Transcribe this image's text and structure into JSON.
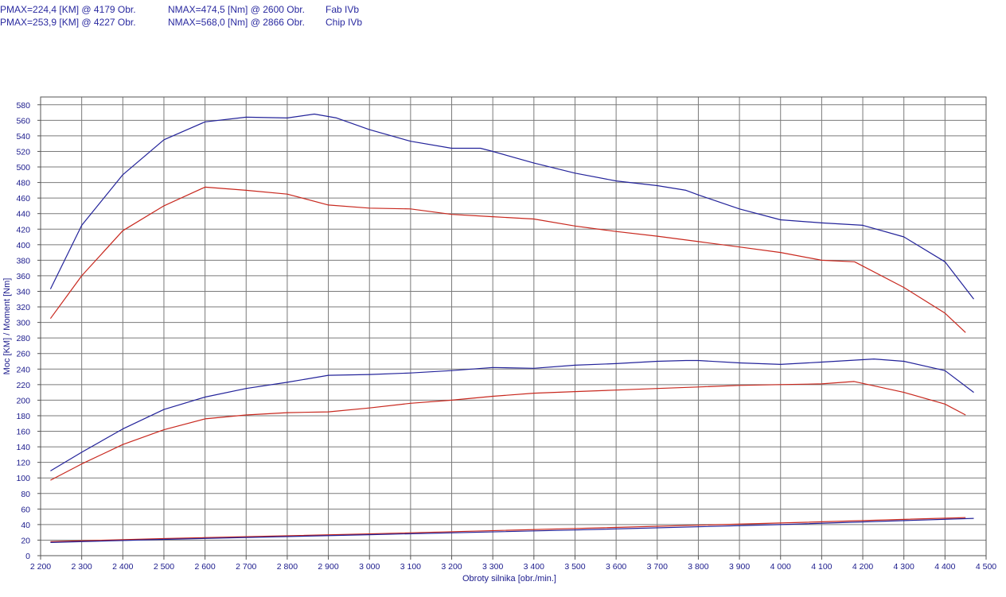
{
  "header": {
    "rows": [
      {
        "pmax": "PMAX=224,4 [KM] @ 4179 Obr.",
        "nmax": "NMAX=474,5 [Nm] @ 2600 Obr.",
        "label": "Fab IVb"
      },
      {
        "pmax": "PMAX=253,9 [KM] @ 4227 Obr.",
        "nmax": "NMAX=568,0 [Nm] @ 2866 Obr.",
        "label": "Chip IVb"
      }
    ]
  },
  "colors": {
    "fab": "#c8281e",
    "chip": "#23239a",
    "grid": "#7a7a7a",
    "text": "#1a1a8c"
  },
  "chart_data": {
    "type": "line",
    "xlabel": "Obroty silnika [obr./min.]",
    "ylabel": "Moc [KM] / Moment [Nm]",
    "xlim": [
      2200,
      4500
    ],
    "ylim": [
      0,
      590
    ],
    "xticks": [
      2200,
      2300,
      2400,
      2500,
      2600,
      2700,
      2800,
      2900,
      3000,
      3100,
      3200,
      3300,
      3400,
      3500,
      3600,
      3700,
      3800,
      3900,
      4000,
      4100,
      4200,
      4300,
      4400,
      4500
    ],
    "xtick_labels": [
      "2 200",
      "2 300",
      "2 400",
      "2 500",
      "2 600",
      "2 700",
      "2 800",
      "2 900",
      "3 000",
      "3 100",
      "3 200",
      "3 300",
      "3 400",
      "3 500",
      "3 600",
      "3 700",
      "3 800",
      "3 900",
      "4 000",
      "4 100",
      "4 200",
      "4 300",
      "4 400",
      "4 500"
    ],
    "yticks": [
      0,
      20,
      40,
      60,
      80,
      100,
      120,
      140,
      160,
      180,
      200,
      220,
      240,
      260,
      280,
      300,
      320,
      340,
      360,
      380,
      400,
      420,
      440,
      460,
      480,
      500,
      520,
      540,
      560,
      580
    ],
    "grid": true,
    "series": [
      {
        "name": "Chip IVb",
        "kind": "torque",
        "color": "#23239a",
        "x": [
          2224,
          2300,
          2400,
          2500,
          2600,
          2700,
          2800,
          2866,
          2920,
          3000,
          3100,
          3200,
          3270,
          3300,
          3400,
          3500,
          3600,
          3700,
          3770,
          3800,
          3900,
          4000,
          4100,
          4200,
          4300,
          4400,
          4470
        ],
        "y": [
          343,
          425,
          490,
          535,
          558,
          564,
          563,
          568,
          563,
          548,
          533,
          524,
          524,
          520,
          505,
          492,
          482,
          476,
          470,
          464,
          446,
          432,
          428,
          425,
          410,
          378,
          330
        ]
      },
      {
        "name": "Fab IVb",
        "kind": "torque",
        "color": "#c8281e",
        "x": [
          2224,
          2300,
          2400,
          2500,
          2600,
          2700,
          2800,
          2900,
          3000,
          3100,
          3200,
          3300,
          3400,
          3500,
          3600,
          3700,
          3800,
          3900,
          4000,
          4100,
          4180,
          4300,
          4400,
          4450
        ],
        "y": [
          305,
          360,
          418,
          450,
          474,
          470,
          465,
          451,
          447,
          446,
          439,
          436,
          433,
          424,
          417,
          411,
          404,
          397,
          390,
          380,
          378,
          345,
          312,
          287
        ]
      },
      {
        "name": "Chip IVb",
        "kind": "power",
        "color": "#23239a",
        "x": [
          2224,
          2300,
          2400,
          2500,
          2600,
          2700,
          2800,
          2900,
          3000,
          3100,
          3200,
          3300,
          3400,
          3500,
          3600,
          3700,
          3770,
          3800,
          3900,
          4000,
          4100,
          4227,
          4300,
          4400,
          4470
        ],
        "y": [
          109,
          133,
          163,
          188,
          204,
          215,
          223,
          232,
          233,
          235,
          238,
          242,
          241,
          245,
          247,
          250,
          251,
          251,
          248,
          246,
          249,
          253,
          250,
          238,
          210
        ]
      },
      {
        "name": "Fab IVb",
        "kind": "power",
        "color": "#c8281e",
        "x": [
          2224,
          2300,
          2400,
          2500,
          2600,
          2700,
          2800,
          2900,
          3000,
          3100,
          3200,
          3300,
          3400,
          3500,
          3600,
          3700,
          3800,
          3900,
          4000,
          4100,
          4179,
          4300,
          4400,
          4450
        ],
        "y": [
          97,
          118,
          143,
          162,
          176,
          181,
          184,
          185,
          190,
          196,
          200,
          205,
          209,
          211,
          213,
          215,
          217,
          219,
          220,
          221,
          224,
          210,
          195,
          181
        ]
      },
      {
        "name": "Fab IVb",
        "kind": "loss",
        "color": "#c8281e",
        "x": [
          2224,
          2500,
          3000,
          3500,
          4000,
          4450
        ],
        "y": [
          18,
          22,
          28,
          35,
          42,
          49
        ]
      },
      {
        "name": "Chip IVb",
        "kind": "loss",
        "color": "#23239a",
        "x": [
          2224,
          2500,
          3000,
          3500,
          4000,
          4470
        ],
        "y": [
          17,
          21,
          27,
          33,
          40,
          48
        ]
      }
    ]
  }
}
